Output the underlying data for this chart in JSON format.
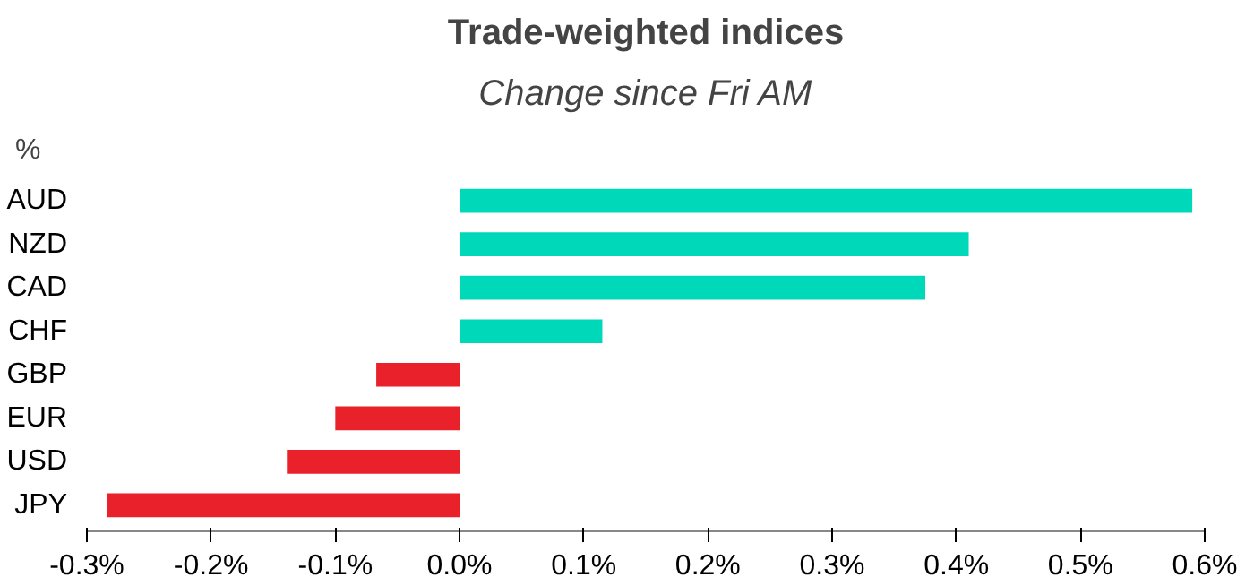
{
  "chart_data": {
    "type": "bar",
    "orientation": "horizontal",
    "title": "Trade-weighted indices",
    "subtitle": "Change since Fri AM",
    "annotations": [
      "%"
    ],
    "categories": [
      "AUD",
      "NZD",
      "CAD",
      "CHF",
      "GBP",
      "EUR",
      "USD",
      "JPY"
    ],
    "values": [
      0.59,
      0.41,
      0.375,
      0.115,
      -0.067,
      -0.1,
      -0.139,
      -0.284
    ],
    "colors": [
      "#00d9b9",
      "#00d9b9",
      "#00d9b9",
      "#00d9b9",
      "#e8212a",
      "#e8212a",
      "#e8212a",
      "#e8212a"
    ],
    "xlim": [
      -0.3,
      0.6
    ],
    "xticks": [
      {
        "value": -0.3,
        "label": "-0.3%"
      },
      {
        "value": -0.2,
        "label": "-0.2%"
      },
      {
        "value": -0.1,
        "label": "-0.1%"
      },
      {
        "value": 0,
        "label": "0.0%"
      },
      {
        "value": 0.1,
        "label": "0.1%"
      },
      {
        "value": 0.2,
        "label": "0.2%"
      },
      {
        "value": 0.3,
        "label": "0.3%"
      },
      {
        "value": 0.4,
        "label": "0.4%"
      },
      {
        "value": 0.5,
        "label": "0.5%"
      },
      {
        "value": 0.6,
        "label": "0.6%"
      }
    ],
    "grid": false
  }
}
